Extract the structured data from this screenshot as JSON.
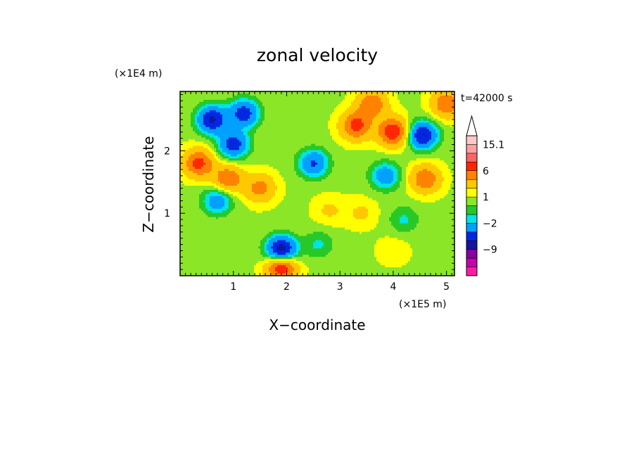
{
  "chart_data": {
    "type": "heatmap",
    "title": "zonal velocity",
    "time_label": "t=42000 s",
    "xlabel": "X−coordinate",
    "ylabel": "Z−coordinate",
    "x_scale_label": "(×1E5 m)",
    "y_scale_label": "(×1E4 m)",
    "xlim": [
      0,
      5.15
    ],
    "ylim": [
      0,
      2.95
    ],
    "xticks": [
      1,
      2,
      3,
      4,
      5
    ],
    "xtick_labels": [
      "1",
      "2",
      "3",
      "4",
      "5"
    ],
    "yticks": [
      1,
      2
    ],
    "ytick_labels": [
      "1",
      "2"
    ],
    "colorbar": {
      "levels": [
        -15,
        -12,
        -9,
        -6,
        -4,
        -2,
        -1,
        0,
        1,
        2,
        4,
        6,
        9,
        12,
        15.1
      ],
      "colors": [
        "#ff1aa8",
        "#c800a8",
        "#8800a0",
        "#1414a0",
        "#0028e0",
        "#00a0ff",
        "#00e4e4",
        "#28c828",
        "#8ce628",
        "#ffff00",
        "#ffc800",
        "#ff8200",
        "#ff2800",
        "#ff6464",
        "#ffa0a0",
        "#ffc8c8"
      ],
      "labels": [
        {
          "value": 15.1,
          "text": "15.1"
        },
        {
          "value": 6,
          "text": "6"
        },
        {
          "value": 1,
          "text": "1"
        },
        {
          "value": -2,
          "text": "−2"
        },
        {
          "value": -9,
          "text": "−9"
        }
      ]
    },
    "features": [
      {
        "x": 0.6,
        "z": 2.5,
        "u": -7
      },
      {
        "x": 0.35,
        "z": 1.8,
        "u": 6
      },
      {
        "x": 1.0,
        "z": 2.1,
        "u": -6
      },
      {
        "x": 1.2,
        "z": 2.6,
        "u": -6
      },
      {
        "x": 0.9,
        "z": 1.55,
        "u": 5
      },
      {
        "x": 0.7,
        "z": 1.2,
        "u": -4
      },
      {
        "x": 1.5,
        "z": 1.4,
        "u": 4
      },
      {
        "x": 1.9,
        "z": 0.4,
        "u": -9
      },
      {
        "x": 1.9,
        "z": 0.15,
        "u": 8
      },
      {
        "x": 2.5,
        "z": 1.8,
        "u": -5
      },
      {
        "x": 3.3,
        "z": 2.4,
        "u": 6
      },
      {
        "x": 3.6,
        "z": 2.75,
        "u": 5
      },
      {
        "x": 4.0,
        "z": 2.3,
        "u": 7
      },
      {
        "x": 4.55,
        "z": 2.25,
        "u": -7
      },
      {
        "x": 4.6,
        "z": 1.55,
        "u": 5
      },
      {
        "x": 5.0,
        "z": 2.75,
        "u": 5
      },
      {
        "x": 3.85,
        "z": 1.6,
        "u": -4
      },
      {
        "x": 4.2,
        "z": 0.9,
        "u": -2
      },
      {
        "x": 3.4,
        "z": 1.0,
        "u": 1.5
      },
      {
        "x": 4.0,
        "z": 0.4,
        "u": 1
      },
      {
        "x": 2.6,
        "z": 0.5,
        "u": -2
      },
      {
        "x": 2.8,
        "z": 1.05,
        "u": 1.5
      }
    ]
  }
}
